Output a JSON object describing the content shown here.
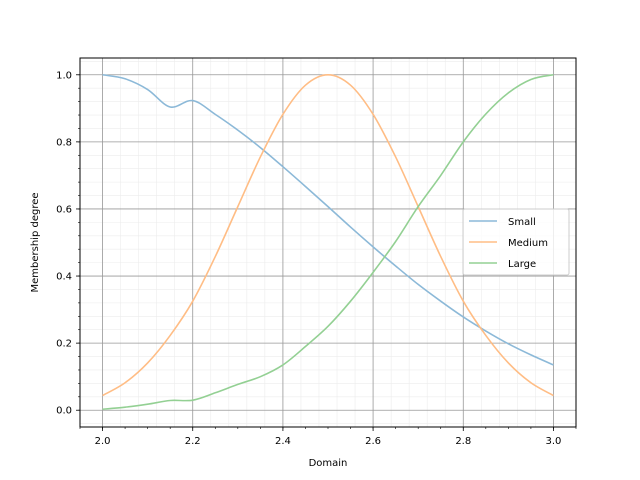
{
  "chart_data": {
    "type": "line",
    "title": "",
    "xlabel": "Domain",
    "ylabel": "Membership degree",
    "xlim": [
      1.95,
      3.05
    ],
    "ylim": [
      -0.05,
      1.05
    ],
    "xticks": [
      2.0,
      2.2,
      2.4,
      2.6,
      2.8,
      3.0
    ],
    "yticks": [
      0.0,
      0.2,
      0.4,
      0.6,
      0.8,
      1.0
    ],
    "xtick_labels": [
      "2.0",
      "2.2",
      "2.4",
      "2.6",
      "2.8",
      "3.0"
    ],
    "ytick_labels": [
      "0.0",
      "0.2",
      "0.4",
      "0.6",
      "0.8",
      "1.0"
    ],
    "grid": {
      "major": true,
      "minor": true
    },
    "legend_position": "center-right",
    "x": [
      2.0,
      2.05,
      2.1,
      2.15,
      2.2,
      2.25,
      2.3,
      2.35,
      2.4,
      2.45,
      2.5,
      2.55,
      2.6,
      2.65,
      2.7,
      2.75,
      2.8,
      2.85,
      2.9,
      2.95,
      3.0
    ],
    "series": [
      {
        "name": "Small",
        "color": "#8cb9d8",
        "values": [
          1.0,
          0.988,
          0.956,
          0.904,
          0.923,
          0.882,
          0.835,
          0.783,
          0.726,
          0.667,
          0.607,
          0.546,
          0.487,
          0.43,
          0.375,
          0.325,
          0.278,
          0.236,
          0.198,
          0.165,
          0.135
        ]
      },
      {
        "name": "Medium",
        "color": "#ffbd85",
        "values": [
          0.044,
          0.082,
          0.141,
          0.223,
          0.325,
          0.458,
          0.607,
          0.755,
          0.882,
          0.969,
          1.0,
          0.969,
          0.882,
          0.755,
          0.607,
          0.458,
          0.325,
          0.223,
          0.141,
          0.082,
          0.044
        ]
      },
      {
        "name": "Large",
        "color": "#93d093",
        "values": [
          0.003,
          0.009,
          0.018,
          0.029,
          0.03,
          0.052,
          0.077,
          0.1,
          0.135,
          0.19,
          0.25,
          0.325,
          0.411,
          0.503,
          0.607,
          0.7,
          0.8,
          0.883,
          0.946,
          0.986,
          1.0
        ]
      }
    ]
  }
}
